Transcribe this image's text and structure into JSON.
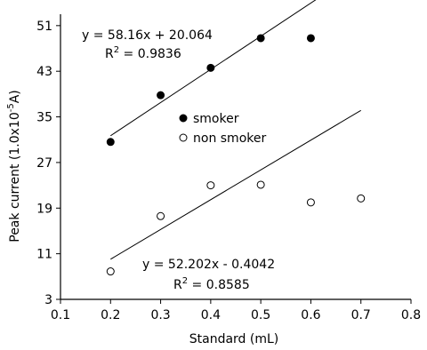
{
  "chart_data": {
    "type": "scatter",
    "title": "",
    "xlabel": "Standard (mL)",
    "ylabel_parts": {
      "prefix": "Peak current (1.0x10",
      "sup": "-5",
      "suffix": "A)"
    },
    "xlim": [
      0.1,
      0.8
    ],
    "ylim": [
      3,
      53
    ],
    "xticks": [
      "0.1",
      "0.2",
      "0.3",
      "0.4",
      "0.5",
      "0.6",
      "0.7",
      "0.8"
    ],
    "yticks": [
      "3",
      "11",
      "19",
      "27",
      "35",
      "43",
      "51"
    ],
    "grid": false,
    "legend_position": "center",
    "series": [
      {
        "name": "smoker",
        "marker": "filled-circle",
        "x": [
          0.2,
          0.3,
          0.4,
          0.5,
          0.6
        ],
        "y": [
          30.6,
          38.8,
          43.6,
          48.8,
          48.8
        ],
        "trendline": {
          "slope": 58.16,
          "intercept": 20.064,
          "x_range": [
            0.2,
            0.66
          ]
        },
        "equation": "y = 58.16x + 20.064",
        "r2_label": "R",
        "r2_sup": "2",
        "r2_value": " = 0.9836"
      },
      {
        "name": "non smoker",
        "marker": "open-circle",
        "x": [
          0.2,
          0.3,
          0.4,
          0.5,
          0.6,
          0.7
        ],
        "y": [
          7.9,
          17.6,
          23.0,
          23.1,
          20.0,
          20.7
        ],
        "trendline": {
          "slope": 52.202,
          "intercept": -0.4042,
          "x_range": [
            0.2,
            0.7
          ]
        },
        "equation": "y = 52.202x - 0.4042",
        "r2_label": "R",
        "r2_sup": "2",
        "r2_value": " = 0.8585"
      }
    ]
  },
  "colors": {
    "axis": "#000000",
    "marker": "#000000",
    "background": "#ffffff"
  }
}
